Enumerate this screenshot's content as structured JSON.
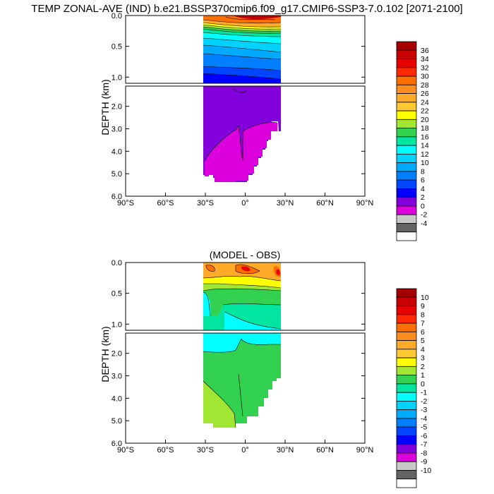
{
  "title": "TEMP ZONAL-AVE (IND) b.e21.BSSP370cmip6.f09_g17.CMIP6-SSP3-7.0.102 [2071-2100]",
  "chart_data": [
    {
      "type": "heatmap",
      "title": "",
      "ylabel": "DEPTH (km)",
      "xlabel": "",
      "x_ticks": [
        "90°S",
        "60°S",
        "30°S",
        "0°",
        "30°N",
        "60°N",
        "90°N"
      ],
      "y_ticks_upper": [
        "0.0",
        "0.5",
        "1.0"
      ],
      "y_ticks_lower": [
        "2.0",
        "3.0",
        "4.0",
        "5.0",
        "6.0"
      ],
      "xlim": [
        -90,
        90
      ],
      "ylim_upper_km": [
        0,
        1.1
      ],
      "ylim_lower_km": [
        1.1,
        6.0
      ],
      "colorbar_labels": [
        "36",
        "34",
        "32",
        "30",
        "28",
        "26",
        "24",
        "22",
        "20",
        "18",
        "16",
        "14",
        "12",
        "10",
        "8",
        "6",
        "4",
        "2",
        "0",
        "-2",
        "-4"
      ],
      "colorbar_colors": [
        "#a50000",
        "#c80000",
        "#e60000",
        "#ff2800",
        "#ff6e00",
        "#ff8c1e",
        "#ffaa28",
        "#ffc832",
        "#ffff00",
        "#a0e632",
        "#32d250",
        "#00e6a0",
        "#00ffff",
        "#00d2ff",
        "#00aaff",
        "#0080ff",
        "#0046ff",
        "#0000ff",
        "#8200dc",
        "#dc00dc",
        "#c8c8c8",
        "#646464",
        "#ffffff"
      ],
      "annotations": []
    },
    {
      "type": "heatmap",
      "title": "(MODEL - OBS)",
      "ylabel": "DEPTH (km)",
      "xlabel": "",
      "x_ticks": [
        "90°S",
        "60°S",
        "30°S",
        "0°",
        "30°N",
        "60°N",
        "90°N"
      ],
      "y_ticks_upper": [
        "0.0",
        "0.5",
        "1.0"
      ],
      "y_ticks_lower": [
        "2.0",
        "3.0",
        "4.0",
        "5.0",
        "6.0"
      ],
      "xlim": [
        -90,
        90
      ],
      "ylim_upper_km": [
        0,
        1.1
      ],
      "ylim_lower_km": [
        1.1,
        6.0
      ],
      "colorbar_labels": [
        "10",
        "9",
        "8",
        "7",
        "6",
        "5",
        "4",
        "3",
        "2",
        "1",
        "0",
        "-1",
        "-2",
        "-3",
        "-4",
        "-5",
        "-6",
        "-7",
        "-8",
        "-9",
        "-10"
      ],
      "colorbar_colors": [
        "#a50000",
        "#c80000",
        "#e60000",
        "#ff2800",
        "#ff6e00",
        "#ff8c1e",
        "#ffaa28",
        "#ffc832",
        "#ffff00",
        "#a0e632",
        "#32d250",
        "#00e6a0",
        "#00ffff",
        "#00d2ff",
        "#00aaff",
        "#0080ff",
        "#0046ff",
        "#0000ff",
        "#8200dc",
        "#dc00dc",
        "#c8c8c8",
        "#646464",
        "#ffffff"
      ]
    }
  ]
}
